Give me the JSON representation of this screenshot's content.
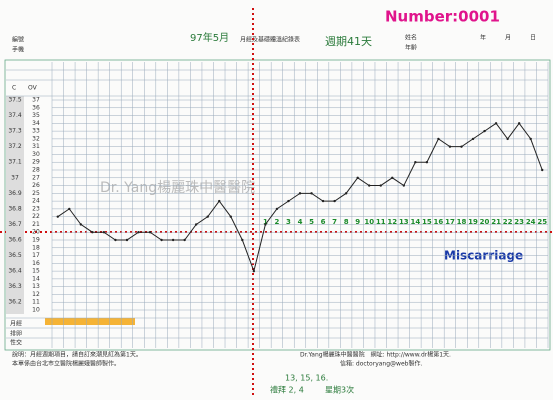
{
  "chart_data": {
    "type": "line",
    "title": "Number:0001",
    "form_labels": [
      "編號",
      "手機",
      "姓名",
      "年齡",
      "年",
      "月",
      "日",
      "C",
      "OV",
      "月經",
      "排卵",
      "性交"
    ],
    "annotations": [
      "97年5月",
      "月經及基礎體溫紀錄表",
      "週期41天",
      "Miscarriage",
      "Dr. Yang楊麗珠中醫醫院",
      "13, 15, 16.",
      "禮拜 2, 4",
      "星期3次"
    ],
    "notes": [
      "說明：月經週期項目，請自訂來潮見紅為第1天。",
      "本單係由台北市立醫院楊麗娥醫師製作。",
      "Dr.Yang楊麗珠中醫醫院　網址: http://www.dr楊第1天.",
      "信箱: doctoryang@web製作."
    ],
    "categories": [
      null,
      null,
      null,
      null,
      null,
      null,
      null,
      null,
      null,
      null,
      null,
      null,
      null,
      null,
      null,
      null,
      null,
      null,
      "1",
      "2",
      "3",
      "4",
      "5",
      "6",
      "7",
      "8",
      "9",
      "10",
      "11",
      "12",
      "13",
      "14",
      "15",
      "16",
      "17",
      "18",
      "19",
      "20",
      "21",
      "22",
      "23",
      "24",
      "25"
    ],
    "series": [
      {
        "name": "OV",
        "color": "#222222",
        "values": [
          22,
          23,
          21,
          20,
          20,
          19,
          19,
          20,
          20,
          19,
          19,
          19,
          21,
          22,
          24,
          22,
          19,
          15,
          21,
          23,
          24,
          25,
          25,
          24,
          24,
          25,
          27,
          26,
          26,
          27,
          26,
          29,
          29,
          32,
          31,
          31,
          32,
          33,
          34,
          32,
          34,
          32,
          28
        ]
      }
    ],
    "ylim": [
      10,
      37
    ],
    "yticks": [
      10,
      11,
      12,
      13,
      14,
      15,
      16,
      17,
      18,
      19,
      20,
      21,
      22,
      23,
      24,
      25,
      26,
      27,
      28,
      29,
      30,
      31,
      32,
      33,
      34,
      35,
      36,
      37
    ],
    "y2lim": [
      36.15,
      37.5
    ],
    "y2ticks": [
      36.2,
      36.3,
      36.4,
      36.5,
      36.6,
      36.7,
      36.8,
      36.9,
      37,
      37.1,
      37.2,
      37.3,
      37.4,
      37.5
    ],
    "grid": true
  }
}
